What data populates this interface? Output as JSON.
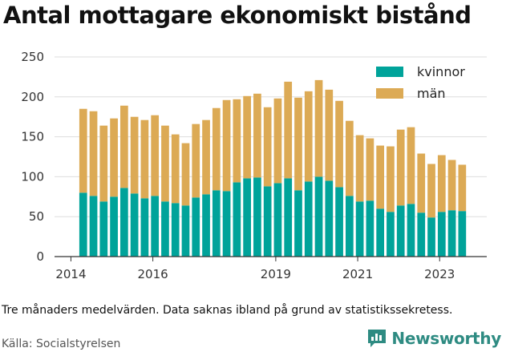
{
  "chart_data": {
    "type": "bar",
    "stacked": true,
    "title": "Antal mottagare ekonomiskt bistånd",
    "xlabel": "",
    "ylabel": "",
    "x_ticks": [
      "2014",
      "2016",
      "2019",
      "2021",
      "2023"
    ],
    "y_ticks": [
      "0",
      "50",
      "100",
      "150",
      "200",
      "250"
    ],
    "ylim": [
      0,
      250
    ],
    "xlim": [
      2013.6,
      2024.15
    ],
    "grid": true,
    "legend_position": "top-right",
    "x": [
      2014.3,
      2014.55,
      2014.8,
      2015.05,
      2015.3,
      2015.55,
      2015.8,
      2016.05,
      2016.3,
      2016.55,
      2016.8,
      2017.05,
      2017.3,
      2017.55,
      2017.8,
      2018.05,
      2018.3,
      2018.55,
      2018.8,
      2019.05,
      2019.3,
      2019.55,
      2019.8,
      2020.05,
      2020.3,
      2020.55,
      2020.8,
      2021.05,
      2021.3,
      2021.55,
      2021.8,
      2022.05,
      2022.3,
      2022.55,
      2022.8,
      2023.05,
      2023.3,
      2023.55
    ],
    "series": [
      {
        "name": "kvinnor",
        "color": "#00a39a",
        "values": [
          80,
          76,
          69,
          75,
          86,
          79,
          73,
          76,
          69,
          67,
          64,
          74,
          78,
          83,
          82,
          93,
          98,
          99,
          88,
          92,
          98,
          83,
          94,
          100,
          95,
          87,
          76,
          69,
          70,
          60,
          56,
          64,
          66,
          55,
          49,
          56,
          58,
          57
        ]
      },
      {
        "name": "män",
        "color": "#dcaa55",
        "values": [
          105,
          106,
          95,
          98,
          103,
          96,
          98,
          101,
          95,
          86,
          78,
          92,
          93,
          103,
          114,
          104,
          103,
          105,
          99,
          106,
          121,
          116,
          113,
          121,
          114,
          108,
          94,
          83,
          78,
          79,
          82,
          95,
          96,
          74,
          67,
          71,
          63,
          58
        ]
      }
    ]
  },
  "footnote": "Tre månaders medelvärden. Data saknas ibland på grund av statistikssekretess.",
  "source": "Källa: Socialstyrelsen",
  "brand": {
    "name": "Newsworthy",
    "icon": "bar-chart-logo-icon",
    "color": "#2e8b82"
  },
  "colors": {
    "grid": "#dddddd",
    "axis": "#333333"
  }
}
